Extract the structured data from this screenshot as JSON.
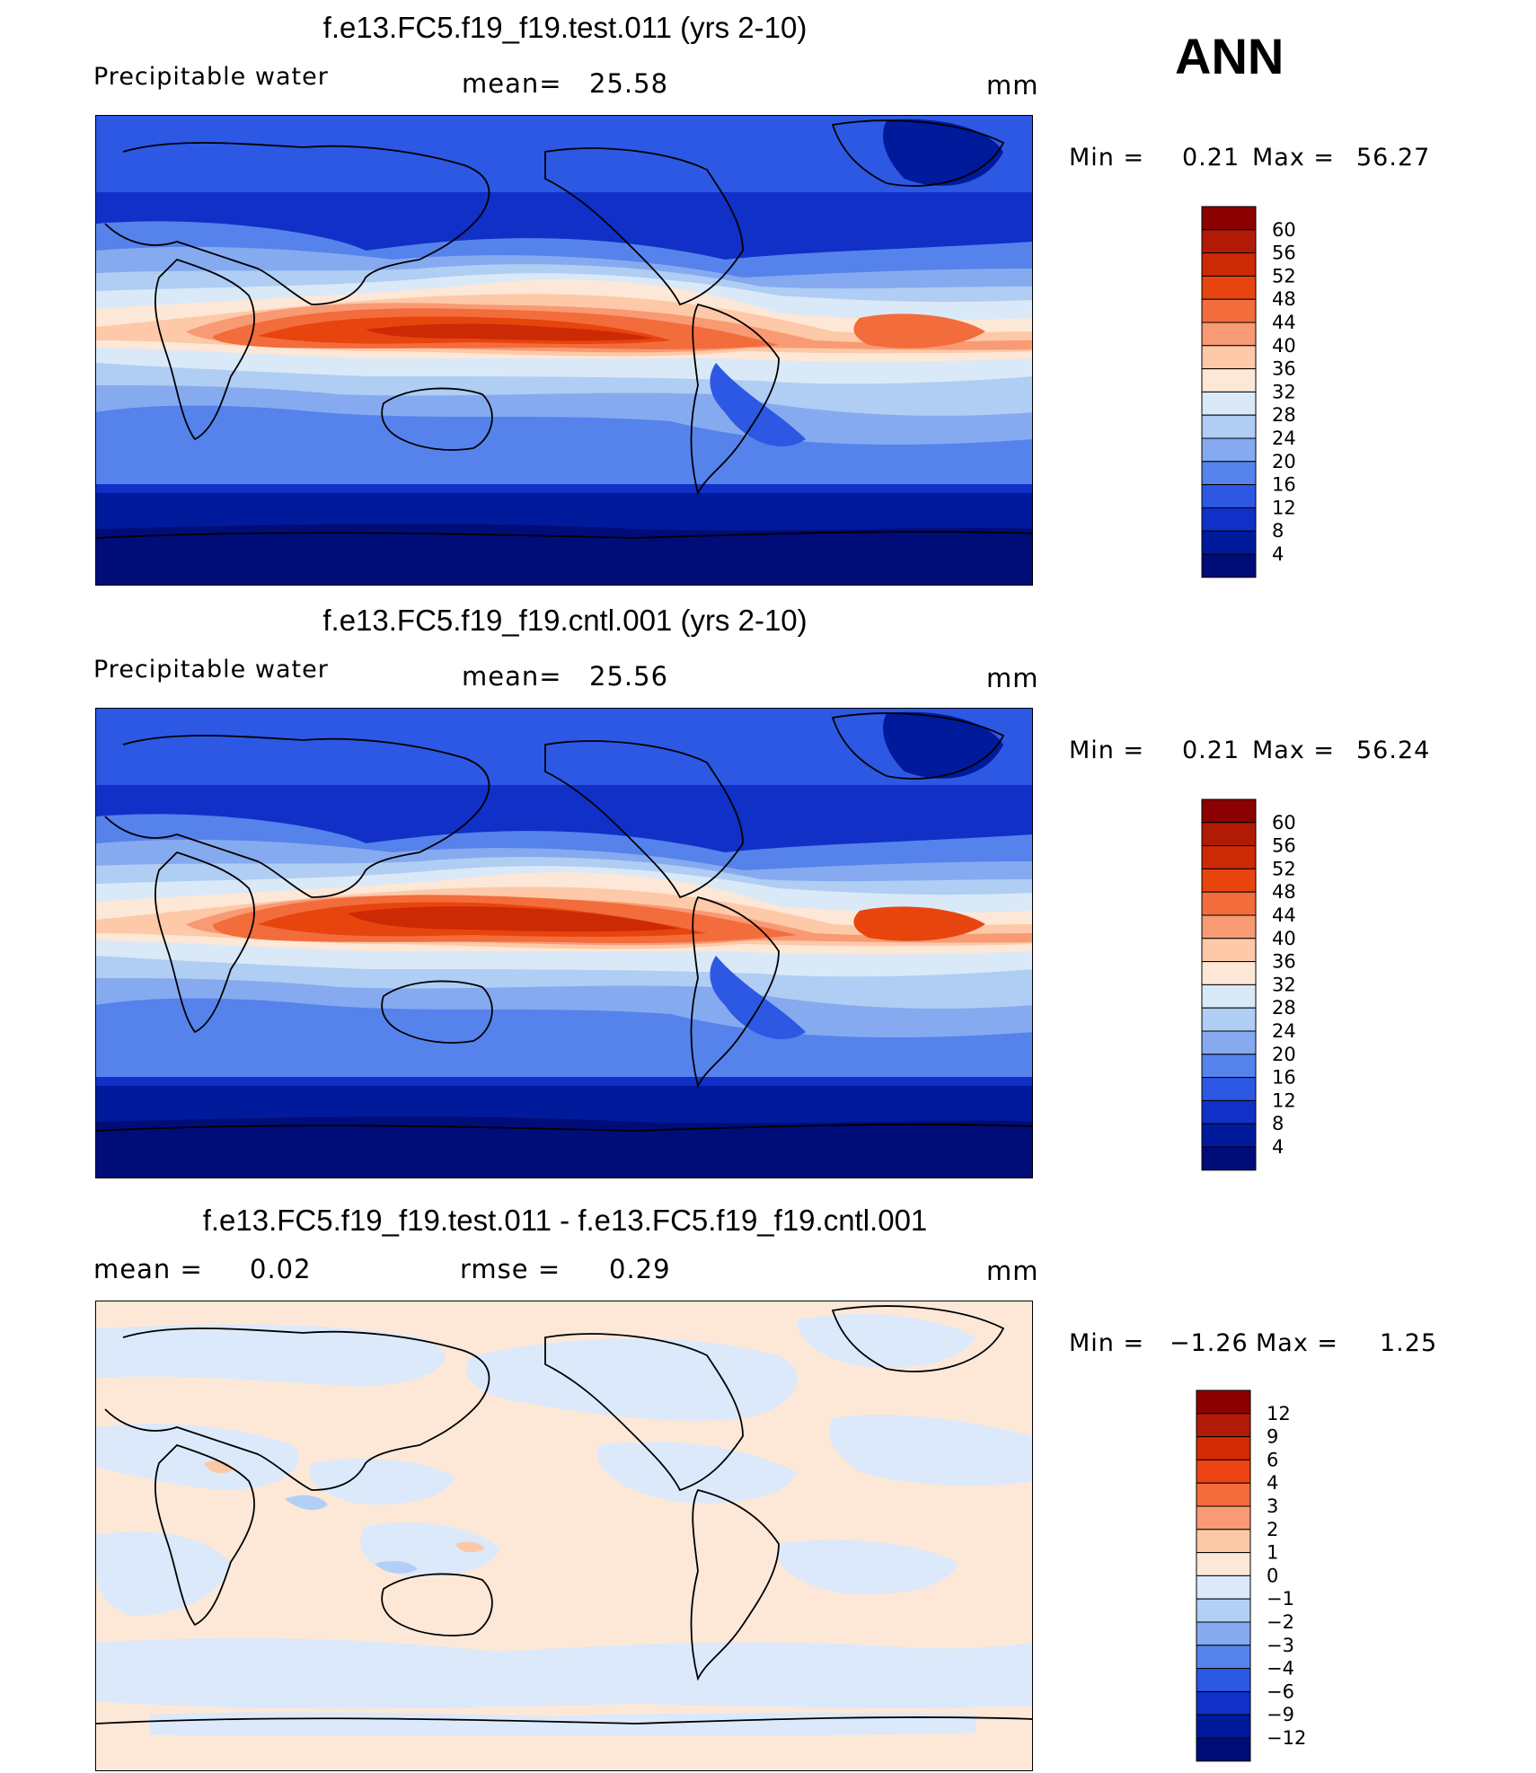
{
  "season": "ANN",
  "panels": [
    {
      "title": "f.e13.FC5.f19_f19.test.011 (yrs 2-10)",
      "variable": "Precipitable water",
      "stat_label": "mean=",
      "stat_value": "25.58",
      "units": "mm",
      "min_label": "Min =",
      "min_value": "0.21",
      "max_label": "Max =",
      "max_value": "56.27"
    },
    {
      "title": "f.e13.FC5.f19_f19.cntl.001 (yrs 2-10)",
      "variable": "Precipitable water",
      "stat_label": "mean=",
      "stat_value": "25.56",
      "units": "mm",
      "min_label": "Min =",
      "min_value": "0.21",
      "max_label": "Max =",
      "max_value": "56.24"
    },
    {
      "title": "f.e13.FC5.f19_f19.test.011 - f.e13.FC5.f19_f19.cntl.001",
      "mean_label": "mean =",
      "mean_value": "0.02",
      "rmse_label": "rmse =",
      "rmse_value": "0.29",
      "units": "mm",
      "min_label": "Min =",
      "min_value": "−1.26",
      "max_label": "Max =",
      "max_value": "1.25"
    }
  ],
  "chart_data": [
    {
      "type": "heatmap",
      "title": "f.e13.FC5.f19_f19.test.011 (yrs 2-10)",
      "variable": "Precipitable water",
      "units": "mm",
      "mean": 25.58,
      "min": 0.21,
      "max": 56.27,
      "colorbar_levels": [
        "60",
        "56",
        "52",
        "48",
        "44",
        "40",
        "36",
        "32",
        "28",
        "24",
        "20",
        "16",
        "12",
        "8",
        "4"
      ],
      "colorbar_colors": [
        "#8b0000",
        "#b11a05",
        "#cc2a05",
        "#e8440d",
        "#f36c3c",
        "#f89a73",
        "#fdc9a8",
        "#fde7d6",
        "#d9e9f8",
        "#b0cdf3",
        "#86aaef",
        "#5682ec",
        "#2c58e3",
        "#1030c8",
        "#001a9c",
        "#000c78"
      ]
    },
    {
      "type": "heatmap",
      "title": "f.e13.FC5.f19_f19.cntl.001 (yrs 2-10)",
      "variable": "Precipitable water",
      "units": "mm",
      "mean": 25.56,
      "min": 0.21,
      "max": 56.24,
      "colorbar_levels": [
        "60",
        "56",
        "52",
        "48",
        "44",
        "40",
        "36",
        "32",
        "28",
        "24",
        "20",
        "16",
        "12",
        "8",
        "4"
      ],
      "colorbar_colors": [
        "#8b0000",
        "#b11a05",
        "#cc2a05",
        "#e8440d",
        "#f36c3c",
        "#f89a73",
        "#fdc9a8",
        "#fde7d6",
        "#d9e9f8",
        "#b0cdf3",
        "#86aaef",
        "#5682ec",
        "#2c58e3",
        "#1030c8",
        "#001a9c",
        "#000c78"
      ]
    },
    {
      "type": "heatmap",
      "title": "f.e13.FC5.f19_f19.test.011 - f.e13.FC5.f19_f19.cntl.001",
      "units": "mm",
      "mean": 0.02,
      "rmse": 0.29,
      "min": -1.26,
      "max": 1.25,
      "colorbar_levels": [
        "12",
        "9",
        "6",
        "4",
        "3",
        "2",
        "1",
        "0",
        "−1",
        "−2",
        "−3",
        "−4",
        "−6",
        "−9",
        "−12"
      ],
      "colorbar_colors": [
        "#8b0000",
        "#b11a05",
        "#d42b05",
        "#ee4413",
        "#f36c3c",
        "#f89a73",
        "#fcc9a8",
        "#fde8d8",
        "#dbe9fa",
        "#b2cff5",
        "#86aaef",
        "#5682ec",
        "#2c58e3",
        "#1030c8",
        "#001a9c",
        "#000c78"
      ]
    }
  ]
}
